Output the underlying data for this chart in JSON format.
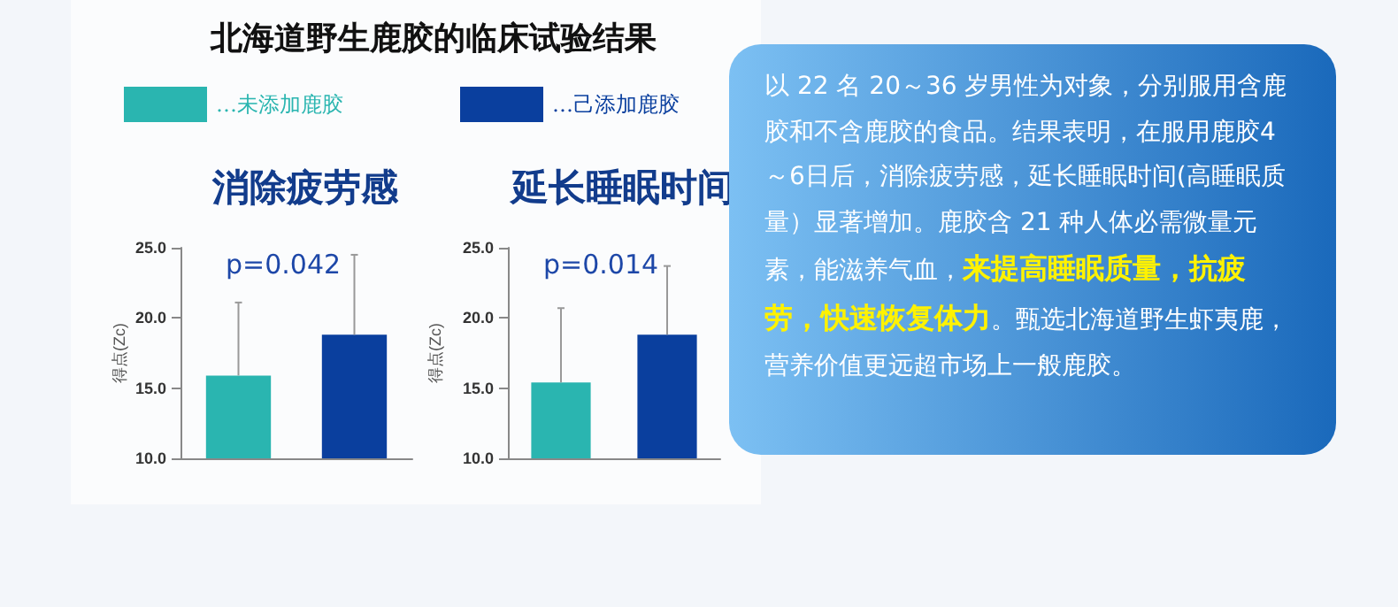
{
  "chart_data": [
    {
      "type": "bar",
      "title": "北海道野生鹿胶的临床试验结果",
      "subtitle": "消除疲劳感",
      "ylabel": "得点(Zc)",
      "categories": [
        null,
        null
      ],
      "series": [
        {
          "name": "…未添加鹿胶",
          "color": "#2ab5b0",
          "values": [
            15.9,
            null
          ],
          "errors": [
            [
              15.9,
              21.1
            ],
            null
          ]
        },
        {
          "name": "…己添加鹿胶",
          "color": "#0a3f9e",
          "values": [
            null,
            18.8
          ],
          "errors": [
            null,
            [
              18.8,
              24.5
            ]
          ]
        }
      ],
      "ylim": [
        10,
        25
      ],
      "yticks": [
        {
          "value": 10,
          "label": "10.0"
        },
        {
          "value": 15,
          "label": "15.0"
        },
        {
          "value": 20,
          "label": "20.0"
        },
        {
          "value": 25,
          "label": "25.0"
        }
      ],
      "annotations": [
        "p=0.042"
      ],
      "legend": "top",
      "grid": false
    },
    {
      "type": "bar",
      "subtitle": "延长睡眠时间",
      "ylabel": "得点(Zc)",
      "categories": [
        null,
        null
      ],
      "series": [
        {
          "color": "#2ab5b0",
          "values": [
            15.4,
            null
          ],
          "errors": [
            [
              15.4,
              20.7
            ],
            null
          ]
        },
        {
          "color": "#0a3f9e",
          "values": [
            null,
            18.8
          ],
          "errors": [
            null,
            [
              18.8,
              23.7
            ]
          ]
        }
      ],
      "ylim": [
        10,
        25
      ],
      "yticks": [
        {
          "value": 10,
          "label": "10.0"
        },
        {
          "value": 15,
          "label": "15.0"
        },
        {
          "value": 20,
          "label": "20.0"
        },
        {
          "value": 25,
          "label": "25.0"
        }
      ],
      "annotations": [
        "p=0.014"
      ],
      "grid": false
    },
    {
      "type": "other",
      "annotations": [
        "以 22 名 20～36 岁男性为对象，分别服用含鹿胶和不含鹿胶的食品。结果表明，在服用鹿胶4～6日后，消除疲劳感，延长睡眠时间(高睡眠质量）显著增加。鹿胶含 21 种人体必需微量元素，能滋养气血，",
        "来提高睡眠质量，抗疲劳，快速恢复体力",
        "。甄选北海道野生虾夷鹿，营养价值更远超市场上一般鹿胶。"
      ]
    }
  ]
}
